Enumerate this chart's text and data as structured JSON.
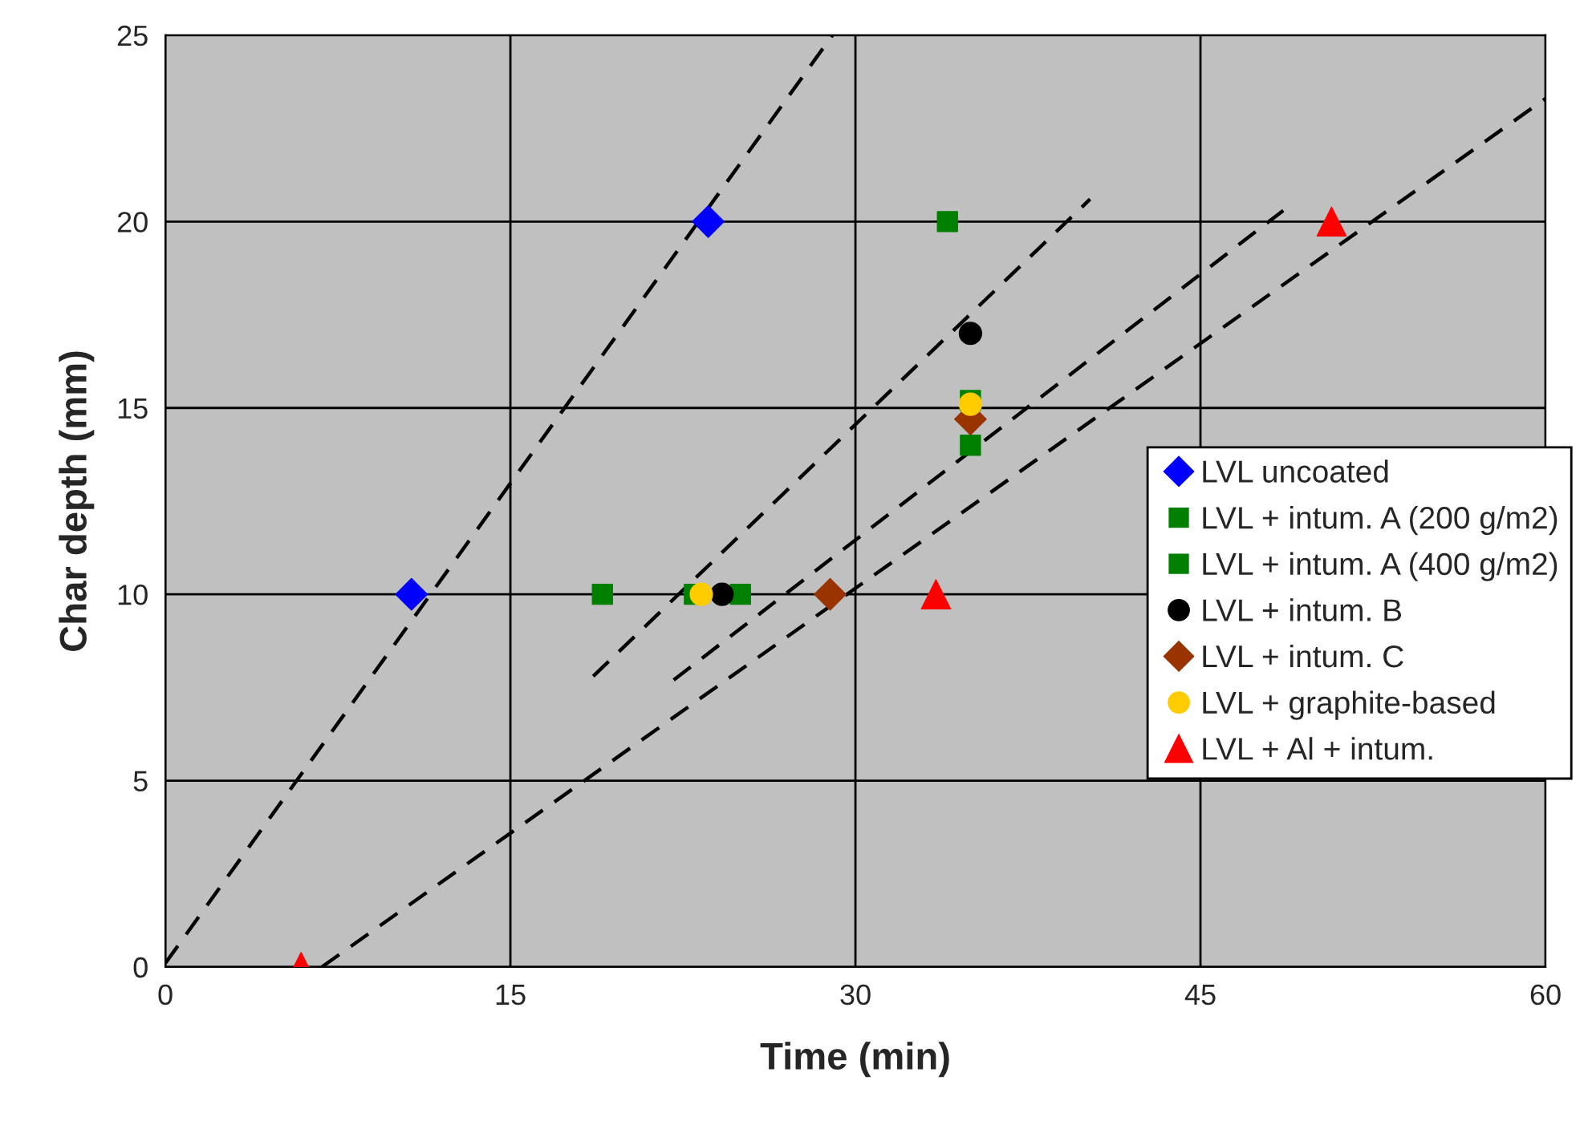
{
  "chart_data": {
    "type": "scatter",
    "xlabel": "Time (min)",
    "ylabel": "Char depth (mm)",
    "xlim": [
      0,
      60
    ],
    "ylim": [
      0,
      25
    ],
    "xticks": [
      0,
      15,
      30,
      45,
      60
    ],
    "yticks": [
      0,
      5,
      10,
      15,
      20,
      25
    ],
    "grid": true,
    "legend": "right",
    "series": [
      {
        "name": "LVL uncoated",
        "color": "#0000ff",
        "marker": "diamond",
        "x": [
          10.7,
          23.6
        ],
        "values": [
          10,
          20
        ]
      },
      {
        "name": "LVL + intum. A (200 g/m2)",
        "color": "#008000",
        "marker": "square",
        "x": [
          19.0,
          34.0
        ],
        "values": [
          10,
          20
        ]
      },
      {
        "name": "LVL + intum. A (400 g/m2)",
        "color": "#008000",
        "marker": "square",
        "x": [
          23.0,
          25.0,
          35.0,
          35.0
        ],
        "values": [
          10,
          10,
          15.2,
          14.0
        ]
      },
      {
        "name": "LVL + intum. B",
        "color": "#000000",
        "marker": "circle",
        "x": [
          24.2,
          35.0
        ],
        "values": [
          10,
          17.0
        ]
      },
      {
        "name": "LVL + intum. C",
        "color": "#993300",
        "marker": "diamond",
        "x": [
          28.9,
          35.0
        ],
        "values": [
          10,
          14.7
        ]
      },
      {
        "name": "LVL + graphite-based",
        "color": "#ffcc00",
        "marker": "circle",
        "x": [
          23.3,
          35.0
        ],
        "values": [
          10,
          15.1
        ]
      },
      {
        "name": "LVL + Al + intum.",
        "color": "#ff0000",
        "marker": "triangle",
        "x": [
          5.9,
          33.5,
          50.7
        ],
        "values": [
          0,
          10,
          20
        ]
      },
      {
        "type": "line",
        "color": "#000000",
        "line_style": "dashed",
        "marker": "none",
        "x": [
          0,
          29.0
        ],
        "values": [
          0.1,
          25
        ]
      },
      {
        "type": "line",
        "color": "#000000",
        "line_style": "dashed",
        "marker": "none",
        "x": [
          18.6,
          40.2
        ],
        "values": [
          7.8,
          20.6
        ]
      },
      {
        "type": "line",
        "color": "#000000",
        "line_style": "dashed",
        "marker": "none",
        "x": [
          22.1,
          48.6
        ],
        "values": [
          7.7,
          20.3
        ]
      },
      {
        "type": "line",
        "color": "#000000",
        "line_style": "dashed",
        "marker": "none",
        "x": [
          6.8,
          60
        ],
        "values": [
          0,
          23.3
        ]
      }
    ]
  }
}
